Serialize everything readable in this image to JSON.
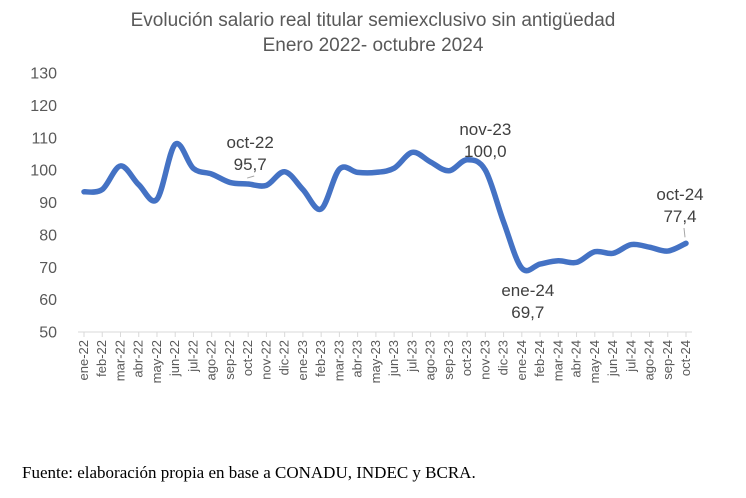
{
  "colors": {
    "line": "#4472C4",
    "text": "#595959",
    "grid": "#d9d9d9"
  },
  "chart_data": {
    "type": "line",
    "title": "Evolución salario real titular semiexclusivo sin antigüedad",
    "subtitle": "Enero 2022- octubre 2024",
    "xlabel": "",
    "ylabel": "",
    "ylim": [
      50,
      130
    ],
    "yticks": [
      50,
      60,
      70,
      80,
      90,
      100,
      110,
      120,
      130
    ],
    "grid": false,
    "categories": [
      "ene-22",
      "feb-22",
      "mar-22",
      "abr-22",
      "may-22",
      "jun-22",
      "jul-22",
      "ago-22",
      "sep-22",
      "oct-22",
      "nov-22",
      "dic-22",
      "ene-23",
      "feb-23",
      "mar-23",
      "abr-23",
      "may-23",
      "jun-23",
      "jul-23",
      "ago-23",
      "sep-23",
      "oct-23",
      "nov-23",
      "dic-23",
      "ene-24",
      "feb-24",
      "mar-24",
      "abr-24",
      "may-24",
      "jun-24",
      "jul-24",
      "ago-24",
      "sep-24",
      "oct-24"
    ],
    "tick_labels": [
      "ene-22",
      "feb-22",
      "mar-22",
      "abr-22",
      "may-22",
      "jun-22",
      "jul-22",
      "ago-22",
      "sep-22",
      "oct-22",
      "nov-22",
      "dic-22",
      "ene-23",
      "feb-23",
      "mar-23",
      "abr-23",
      "may-23",
      "jun-23",
      "jul-23",
      "ago-23",
      "sep-23",
      "oct-23",
      "nov-23",
      "dic-23",
      "ene-24",
      "feb-24",
      "mar-24",
      "abr-24",
      "may-24",
      "jun-24",
      "jul-24",
      "ago-24",
      "sep-24",
      "oct-24"
    ],
    "series": [
      {
        "values": [
          93.3,
          94.0,
          101.3,
          95.5,
          91.0,
          108.0,
          100.5,
          98.8,
          96.2,
          95.7,
          95.3,
          99.5,
          94.0,
          88.0,
          100.3,
          99.3,
          99.3,
          100.6,
          105.5,
          102.5,
          99.8,
          103.2,
          100.0,
          84.0,
          69.7,
          71.0,
          72.0,
          71.5,
          74.8,
          74.3,
          77.0,
          76.2,
          75.0,
          77.4
        ]
      }
    ],
    "annotations": [
      {
        "index": 9,
        "label": "oct-22",
        "value_text": "95,7"
      },
      {
        "index": 22,
        "label": "nov-23",
        "value_text": "100,0"
      },
      {
        "index": 24,
        "label": "ene-24",
        "value_text": "69,7"
      },
      {
        "index": 33,
        "label": "oct-24",
        "value_text": "77,4"
      }
    ]
  },
  "source": "Fuente: elaboración propia en base a CONADU, INDEC y BCRA."
}
